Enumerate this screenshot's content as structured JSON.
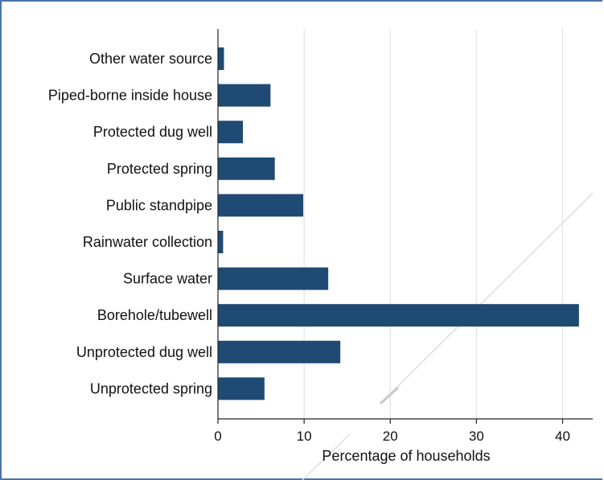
{
  "chart_data": {
    "type": "bar",
    "orientation": "horizontal",
    "categories": [
      "Other water source",
      "Piped-borne inside house",
      "Protected dug well",
      "Protected spring",
      "Public standpipe",
      "Rainwater collection",
      "Surface water",
      "Borehole/tubewell",
      "Unprotected dug well",
      "Unprotected spring"
    ],
    "values": [
      0.7,
      6.1,
      2.9,
      6.6,
      9.9,
      0.6,
      12.8,
      41.9,
      14.2,
      5.4
    ],
    "xlabel": "Percentage of households",
    "ylabel": "",
    "xlim": [
      0,
      43.5
    ],
    "xticks": [
      "0",
      "10",
      "20",
      "30",
      "40"
    ],
    "grid": true,
    "colors": {
      "bar": "#1f4a73",
      "grid": "#e3e3e3",
      "frame": "#4a74a8"
    }
  }
}
